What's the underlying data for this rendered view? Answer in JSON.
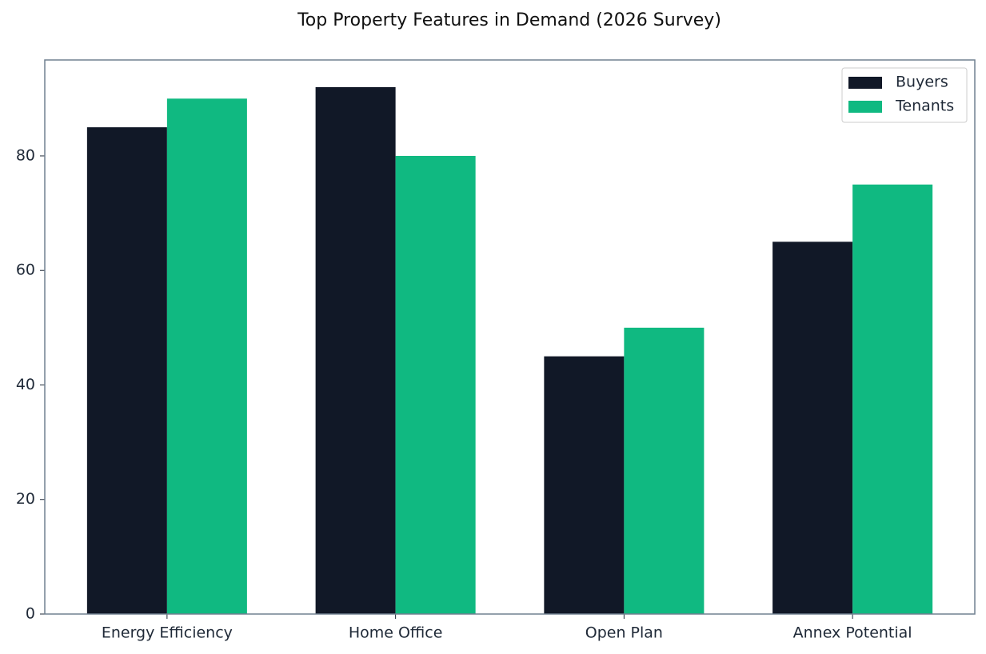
{
  "chart_data": {
    "type": "bar",
    "title": "Top Property Features in Demand (2026 Survey)",
    "categories": [
      "Energy Efficiency",
      "Home Office",
      "Open Plan",
      "Annex Potential"
    ],
    "series": [
      {
        "name": "Buyers",
        "color": "#111827",
        "values": [
          85,
          92,
          45,
          65
        ]
      },
      {
        "name": "Tenants",
        "color": "#10b981",
        "values": [
          90,
          80,
          50,
          75
        ]
      }
    ],
    "ylim": [
      0,
      96.75
    ],
    "yticks": [
      0,
      20,
      40,
      60,
      80
    ],
    "legend": "upper right"
  }
}
